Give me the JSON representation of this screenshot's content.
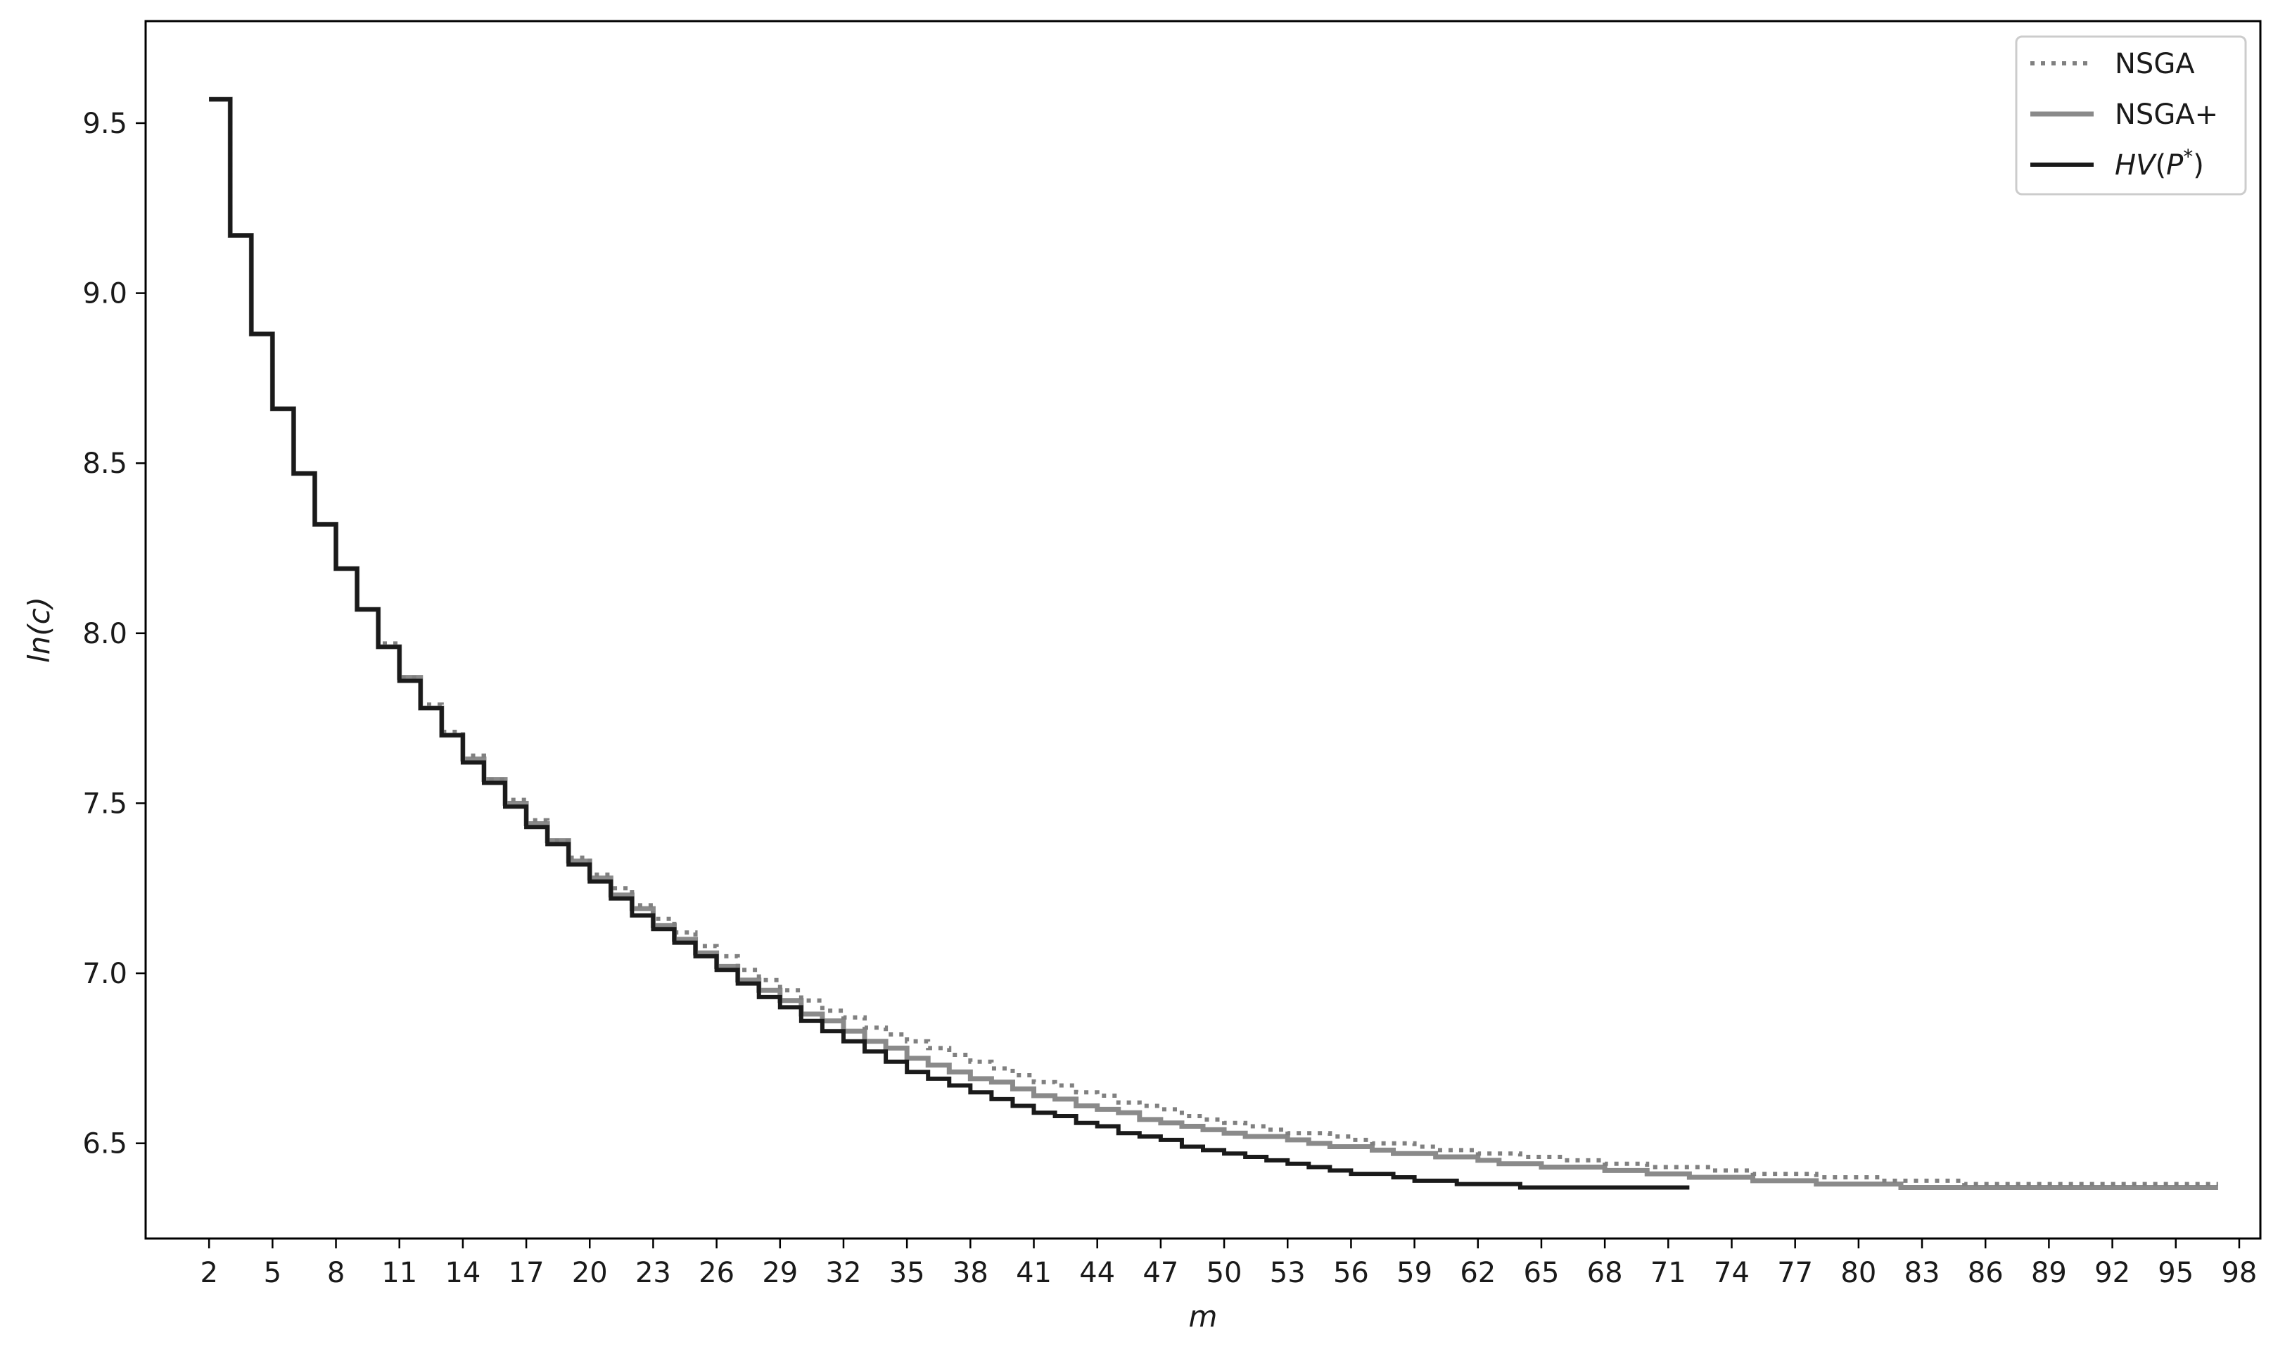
{
  "chart_data": {
    "type": "line",
    "title": "",
    "xlabel": "m",
    "ylabel": "ln(c)",
    "xlim": [
      -1,
      99
    ],
    "ylim": [
      6.22,
      9.8
    ],
    "x_ticks": [
      2,
      5,
      8,
      11,
      14,
      17,
      20,
      23,
      26,
      29,
      32,
      35,
      38,
      41,
      44,
      47,
      50,
      53,
      56,
      59,
      62,
      65,
      68,
      71,
      74,
      77,
      80,
      83,
      86,
      89,
      92,
      95,
      98
    ],
    "y_ticks": [
      6.5,
      7.0,
      7.5,
      8.0,
      8.5,
      9.0,
      9.5
    ],
    "y_tick_labels": [
      "6.5",
      "7.0",
      "7.5",
      "8.0",
      "8.5",
      "9.0",
      "9.5"
    ],
    "grid": false,
    "legend_position": "top-right",
    "series": [
      {
        "name": "NSGA",
        "style": "dotted",
        "color": "#808080",
        "drawstyle": "steps-post",
        "x_start": 2,
        "values": [
          9.57,
          9.17,
          8.88,
          8.66,
          8.47,
          8.32,
          8.19,
          8.07,
          7.97,
          7.87,
          7.79,
          7.71,
          7.64,
          7.57,
          7.51,
          7.45,
          7.39,
          7.34,
          7.29,
          7.25,
          7.2,
          7.16,
          7.12,
          7.08,
          7.05,
          7.01,
          6.98,
          6.95,
          6.92,
          6.89,
          6.87,
          6.84,
          6.82,
          6.8,
          6.78,
          6.76,
          6.74,
          6.72,
          6.7,
          6.68,
          6.67,
          6.65,
          6.64,
          6.62,
          6.61,
          6.6,
          6.58,
          6.57,
          6.56,
          6.55,
          6.54,
          6.53,
          6.53,
          6.52,
          6.51,
          6.5,
          6.5,
          6.49,
          6.48,
          6.48,
          6.47,
          6.47,
          6.46,
          6.46,
          6.45,
          6.45,
          6.44,
          6.44,
          6.43,
          6.43,
          6.43,
          6.42,
          6.42,
          6.41,
          6.41,
          6.41,
          6.4,
          6.4,
          6.4,
          6.39,
          6.39,
          6.39,
          6.39,
          6.38,
          6.38,
          6.38,
          6.38,
          6.38,
          6.38,
          6.38,
          6.38,
          6.38,
          6.38,
          6.38,
          6.38
        ]
      },
      {
        "name": "NSGA+",
        "style": "solid",
        "color": "#8a8a8a",
        "drawstyle": "steps-post",
        "x_start": 2,
        "values": [
          9.57,
          9.17,
          8.88,
          8.66,
          8.47,
          8.32,
          8.19,
          8.07,
          7.96,
          7.87,
          7.78,
          7.7,
          7.63,
          7.57,
          7.5,
          7.44,
          7.39,
          7.33,
          7.28,
          7.23,
          7.19,
          7.14,
          7.1,
          7.06,
          7.02,
          6.98,
          6.95,
          6.92,
          6.88,
          6.86,
          6.83,
          6.8,
          6.78,
          6.75,
          6.73,
          6.71,
          6.69,
          6.68,
          6.66,
          6.64,
          6.63,
          6.61,
          6.6,
          6.59,
          6.57,
          6.56,
          6.55,
          6.54,
          6.53,
          6.52,
          6.52,
          6.51,
          6.5,
          6.49,
          6.49,
          6.48,
          6.47,
          6.47,
          6.46,
          6.46,
          6.45,
          6.44,
          6.44,
          6.43,
          6.43,
          6.43,
          6.42,
          6.42,
          6.41,
          6.41,
          6.4,
          6.4,
          6.4,
          6.39,
          6.39,
          6.39,
          6.38,
          6.38,
          6.38,
          6.38,
          6.37,
          6.37,
          6.37,
          6.37,
          6.37,
          6.37,
          6.37,
          6.37,
          6.37,
          6.37,
          6.37,
          6.37,
          6.37,
          6.37,
          6.37
        ]
      },
      {
        "name": "HV(P*)",
        "style": "solid",
        "color": "#1a1a1a",
        "drawstyle": "steps-post",
        "x_start": 2,
        "values": [
          9.57,
          9.17,
          8.88,
          8.66,
          8.47,
          8.32,
          8.19,
          8.07,
          7.96,
          7.86,
          7.78,
          7.7,
          7.62,
          7.56,
          7.49,
          7.43,
          7.38,
          7.32,
          7.27,
          7.22,
          7.17,
          7.13,
          7.09,
          7.05,
          7.01,
          6.97,
          6.93,
          6.9,
          6.86,
          6.83,
          6.8,
          6.77,
          6.74,
          6.71,
          6.69,
          6.67,
          6.65,
          6.63,
          6.61,
          6.59,
          6.58,
          6.56,
          6.55,
          6.53,
          6.52,
          6.51,
          6.49,
          6.48,
          6.47,
          6.46,
          6.45,
          6.44,
          6.43,
          6.42,
          6.41,
          6.41,
          6.4,
          6.39,
          6.39,
          6.38,
          6.38,
          6.38,
          6.37,
          6.37,
          6.37,
          6.37,
          6.37,
          6.37,
          6.37,
          6.37
        ]
      }
    ]
  }
}
